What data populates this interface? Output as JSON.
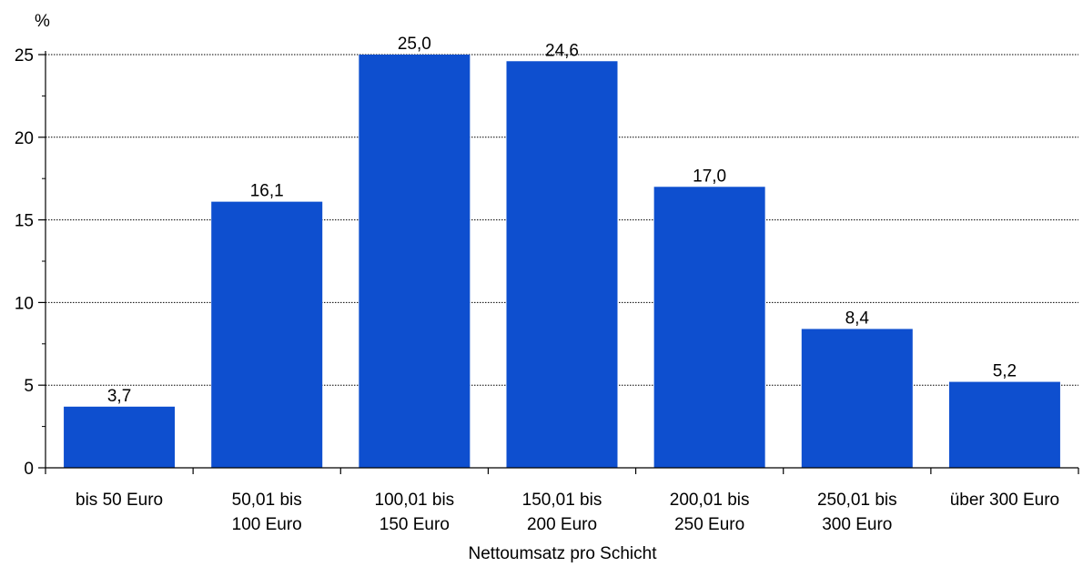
{
  "chart_data": {
    "type": "bar",
    "title": "",
    "ylabel": "%",
    "xlabel": "Nettoumsatz pro Schicht",
    "ylim": [
      0,
      25
    ],
    "yticks": [
      0,
      5,
      10,
      15,
      20,
      25
    ],
    "grid": true,
    "categories": [
      [
        "bis 50 Euro"
      ],
      [
        "50,01 bis",
        "100 Euro"
      ],
      [
        "100,01 bis",
        "150 Euro"
      ],
      [
        "150,01 bis",
        "200 Euro"
      ],
      [
        "200,01 bis",
        "250 Euro"
      ],
      [
        "250,01 bis",
        "300 Euro"
      ],
      [
        "über 300 Euro"
      ]
    ],
    "values": [
      3.7,
      16.1,
      25.0,
      24.6,
      17.0,
      8.4,
      5.2
    ],
    "value_labels": [
      "3,7",
      "16,1",
      "25,0",
      "24,6",
      "17,0",
      "8,4",
      "5,2"
    ],
    "bar_color": "#0e4fcf"
  }
}
